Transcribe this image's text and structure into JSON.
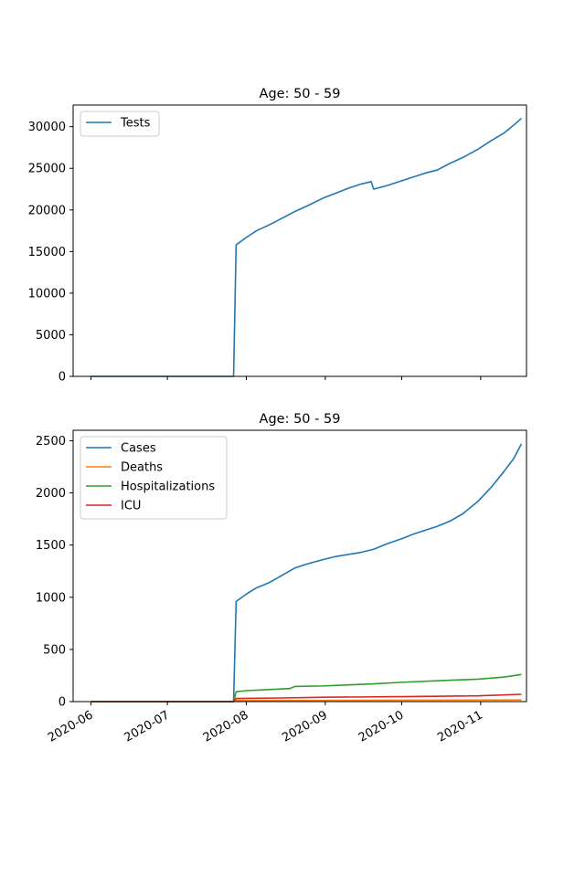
{
  "chart_data": [
    {
      "type": "line",
      "title": "Age: 50 - 59",
      "xlabel": "",
      "ylabel": "",
      "x_range": [
        "2020-05-25",
        "2020-11-19"
      ],
      "ylim": [
        0,
        32600
      ],
      "yticks": [
        0,
        5000,
        10000,
        15000,
        20000,
        25000,
        30000
      ],
      "xticks": [
        "2020-06",
        "2020-07",
        "2020-08",
        "2020-09",
        "2020-10",
        "2020-11"
      ],
      "show_xtick_labels": false,
      "grid": false,
      "legend_position": "upper-left",
      "series": [
        {
          "name": "Tests",
          "color": "#1f77b4",
          "points": [
            [
              "2020-06-01",
              0
            ],
            [
              "2020-07-27",
              0
            ],
            [
              "2020-07-28",
              15800
            ],
            [
              "2020-08-01",
              16700
            ],
            [
              "2020-08-05",
              17500
            ],
            [
              "2020-08-10",
              18200
            ],
            [
              "2020-08-15",
              19000
            ],
            [
              "2020-08-20",
              19800
            ],
            [
              "2020-08-25",
              20500
            ],
            [
              "2020-08-31",
              21400
            ],
            [
              "2020-09-05",
              22000
            ],
            [
              "2020-09-10",
              22600
            ],
            [
              "2020-09-15",
              23100
            ],
            [
              "2020-09-19",
              23400
            ],
            [
              "2020-09-20",
              22500
            ],
            [
              "2020-09-25",
              22900
            ],
            [
              "2020-10-01",
              23500
            ],
            [
              "2020-10-05",
              23900
            ],
            [
              "2020-10-10",
              24400
            ],
            [
              "2020-10-15",
              24800
            ],
            [
              "2020-10-20",
              25600
            ],
            [
              "2020-10-25",
              26300
            ],
            [
              "2020-10-31",
              27300
            ],
            [
              "2020-11-05",
              28300
            ],
            [
              "2020-11-10",
              29200
            ],
            [
              "2020-11-14",
              30200
            ],
            [
              "2020-11-17",
              31000
            ]
          ]
        }
      ]
    },
    {
      "type": "line",
      "title": "Age: 50 - 59",
      "xlabel": "",
      "ylabel": "",
      "x_range": [
        "2020-05-25",
        "2020-11-19"
      ],
      "ylim": [
        0,
        2600
      ],
      "yticks": [
        0,
        500,
        1000,
        1500,
        2000,
        2500
      ],
      "xticks": [
        "2020-06",
        "2020-07",
        "2020-08",
        "2020-09",
        "2020-10",
        "2020-11"
      ],
      "show_xtick_labels": true,
      "grid": false,
      "legend_position": "upper-left",
      "series": [
        {
          "name": "Cases",
          "color": "#1f77b4",
          "points": [
            [
              "2020-06-01",
              0
            ],
            [
              "2020-07-27",
              0
            ],
            [
              "2020-07-28",
              960
            ],
            [
              "2020-08-01",
              1030
            ],
            [
              "2020-08-05",
              1090
            ],
            [
              "2020-08-10",
              1140
            ],
            [
              "2020-08-15",
              1210
            ],
            [
              "2020-08-20",
              1280
            ],
            [
              "2020-08-25",
              1320
            ],
            [
              "2020-08-31",
              1360
            ],
            [
              "2020-09-05",
              1390
            ],
            [
              "2020-09-10",
              1410
            ],
            [
              "2020-09-15",
              1430
            ],
            [
              "2020-09-20",
              1460
            ],
            [
              "2020-09-25",
              1510
            ],
            [
              "2020-10-01",
              1560
            ],
            [
              "2020-10-05",
              1600
            ],
            [
              "2020-10-10",
              1640
            ],
            [
              "2020-10-15",
              1680
            ],
            [
              "2020-10-20",
              1730
            ],
            [
              "2020-10-25",
              1800
            ],
            [
              "2020-10-31",
              1920
            ],
            [
              "2020-11-05",
              2050
            ],
            [
              "2020-11-10",
              2200
            ],
            [
              "2020-11-14",
              2330
            ],
            [
              "2020-11-17",
              2470
            ]
          ]
        },
        {
          "name": "Deaths",
          "color": "#ff7f0e",
          "points": [
            [
              "2020-06-01",
              0
            ],
            [
              "2020-07-27",
              0
            ],
            [
              "2020-07-28",
              10
            ],
            [
              "2020-09-01",
              12
            ],
            [
              "2020-10-01",
              14
            ],
            [
              "2020-11-17",
              16
            ]
          ]
        },
        {
          "name": "Hospitalizations",
          "color": "#2ca02c",
          "points": [
            [
              "2020-06-01",
              0
            ],
            [
              "2020-07-27",
              0
            ],
            [
              "2020-07-28",
              95
            ],
            [
              "2020-08-01",
              105
            ],
            [
              "2020-08-10",
              115
            ],
            [
              "2020-08-18",
              125
            ],
            [
              "2020-08-20",
              145
            ],
            [
              "2020-08-31",
              150
            ],
            [
              "2020-09-10",
              160
            ],
            [
              "2020-09-20",
              170
            ],
            [
              "2020-10-01",
              185
            ],
            [
              "2020-10-15",
              200
            ],
            [
              "2020-10-31",
              215
            ],
            [
              "2020-11-10",
              235
            ],
            [
              "2020-11-17",
              260
            ]
          ]
        },
        {
          "name": "ICU",
          "color": "#d62728",
          "points": [
            [
              "2020-06-01",
              0
            ],
            [
              "2020-07-27",
              0
            ],
            [
              "2020-07-28",
              30
            ],
            [
              "2020-08-15",
              35
            ],
            [
              "2020-09-01",
              42
            ],
            [
              "2020-10-01",
              48
            ],
            [
              "2020-10-31",
              55
            ],
            [
              "2020-11-17",
              70
            ]
          ]
        }
      ]
    }
  ]
}
